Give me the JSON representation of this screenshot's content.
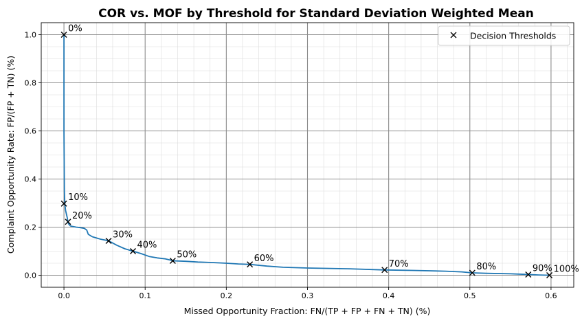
{
  "chart_data": {
    "type": "line",
    "title": "COR vs. MOF by Threshold for Standard Deviation Weighted Mean",
    "xlabel": "Missed Opportunity Fraction: FN/(TP + FP + FN + TN) (%)",
    "ylabel": "Complaint Opportunity Rate: FP/(FP + TN) (%)",
    "xlim": [
      -0.028,
      0.628
    ],
    "ylim": [
      -0.05,
      1.05
    ],
    "xticks": [
      0.0,
      0.1,
      0.2,
      0.3,
      0.4,
      0.5,
      0.6
    ],
    "xtick_labels": [
      "0.0",
      "0.1",
      "0.2",
      "0.3",
      "0.4",
      "0.5",
      "0.6"
    ],
    "yticks": [
      0.0,
      0.2,
      0.4,
      0.6,
      0.8,
      1.0
    ],
    "ytick_labels": [
      "0.0",
      "0.2",
      "0.4",
      "0.6",
      "0.8",
      "1.0"
    ],
    "grid": true,
    "minor_grid": true,
    "legend_position": "top-right",
    "series": [
      {
        "color": "#1f77b4",
        "x": [
          0.0,
          0.0,
          0.0005,
          0.001,
          0.002,
          0.004,
          0.005,
          0.006,
          0.008,
          0.01,
          0.015,
          0.02,
          0.025,
          0.028,
          0.03,
          0.035,
          0.045,
          0.055,
          0.065,
          0.075,
          0.085,
          0.095,
          0.105,
          0.115,
          0.125,
          0.135,
          0.15,
          0.165,
          0.18,
          0.2,
          0.215,
          0.23,
          0.25,
          0.27,
          0.3,
          0.35,
          0.395,
          0.43,
          0.47,
          0.49,
          0.503,
          0.52,
          0.55,
          0.572,
          0.585,
          0.598
        ],
        "y": [
          1.0,
          0.6,
          0.35,
          0.3,
          0.27,
          0.24,
          0.22,
          0.212,
          0.205,
          0.203,
          0.2,
          0.198,
          0.195,
          0.188,
          0.17,
          0.16,
          0.15,
          0.143,
          0.125,
          0.11,
          0.1,
          0.09,
          0.078,
          0.072,
          0.068,
          0.06,
          0.058,
          0.055,
          0.053,
          0.05,
          0.047,
          0.045,
          0.038,
          0.033,
          0.03,
          0.027,
          0.022,
          0.02,
          0.017,
          0.014,
          0.01,
          0.008,
          0.006,
          0.003,
          0.001,
          0.0
        ]
      }
    ],
    "thresholds": {
      "legend_label": "Decision Thresholds",
      "marker": "x",
      "points": [
        {
          "label": "0%",
          "x": 0.0,
          "y": 1.0
        },
        {
          "label": "10%",
          "x": 0.0,
          "y": 0.298
        },
        {
          "label": "20%",
          "x": 0.005,
          "y": 0.222
        },
        {
          "label": "30%",
          "x": 0.055,
          "y": 0.143
        },
        {
          "label": "40%",
          "x": 0.085,
          "y": 0.1
        },
        {
          "label": "50%",
          "x": 0.134,
          "y": 0.06
        },
        {
          "label": "60%",
          "x": 0.229,
          "y": 0.045
        },
        {
          "label": "70%",
          "x": 0.395,
          "y": 0.022
        },
        {
          "label": "80%",
          "x": 0.503,
          "y": 0.01
        },
        {
          "label": "90%",
          "x": 0.572,
          "y": 0.003
        },
        {
          "label": "100%",
          "x": 0.598,
          "y": 0.0
        }
      ]
    }
  }
}
